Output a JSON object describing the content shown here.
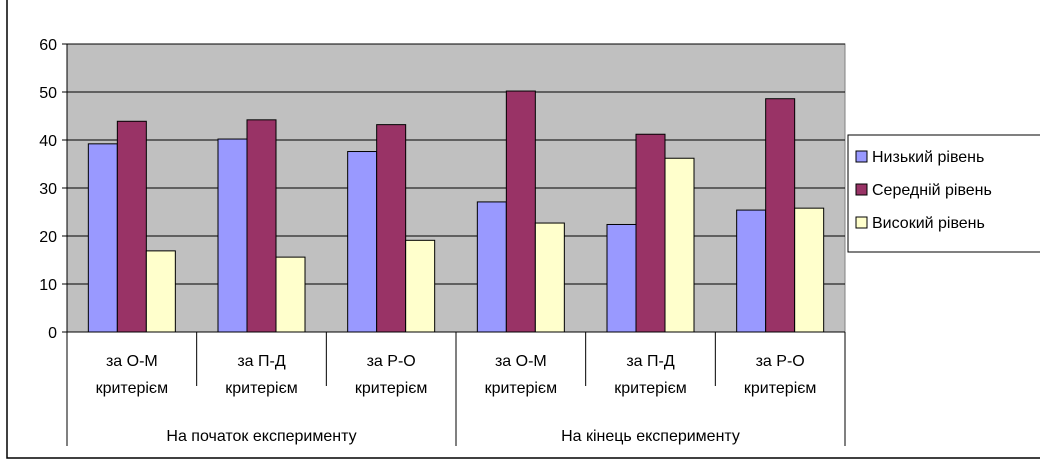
{
  "chart_data": {
    "type": "bar",
    "title": "",
    "xlabel": "",
    "ylabel": "",
    "ylim": [
      0,
      60
    ],
    "y_ticks": [
      0,
      10,
      20,
      30,
      40,
      50,
      60
    ],
    "grid": true,
    "legend_position": "right",
    "plot_background": "#c0c0c0",
    "categories": [
      {
        "line1": "за О-М",
        "line2": "критерієм"
      },
      {
        "line1": "за П-Д",
        "line2": "критерієм"
      },
      {
        "line1": "за Р-О",
        "line2": "критерієм"
      },
      {
        "line1": "за О-М",
        "line2": "критерієм"
      },
      {
        "line1": "за П-Д",
        "line2": "критерієм"
      },
      {
        "line1": "за Р-О",
        "line2": "критерієм"
      }
    ],
    "groups": [
      {
        "label": "На початок експерименту",
        "span": 3
      },
      {
        "label": "На кінець експерименту",
        "span": 3
      }
    ],
    "series": [
      {
        "name": "Низький рівень",
        "color": "#9999ff",
        "values": [
          39.2,
          40.2,
          37.6,
          27.1,
          22.4,
          25.4
        ]
      },
      {
        "name": "Середній рівень",
        "color": "#993366",
        "values": [
          43.9,
          44.2,
          43.2,
          50.2,
          41.2,
          48.6
        ]
      },
      {
        "name": "Високий рівень",
        "color": "#ffffcc",
        "values": [
          16.9,
          15.6,
          19.1,
          22.7,
          36.2,
          25.8
        ]
      }
    ]
  }
}
